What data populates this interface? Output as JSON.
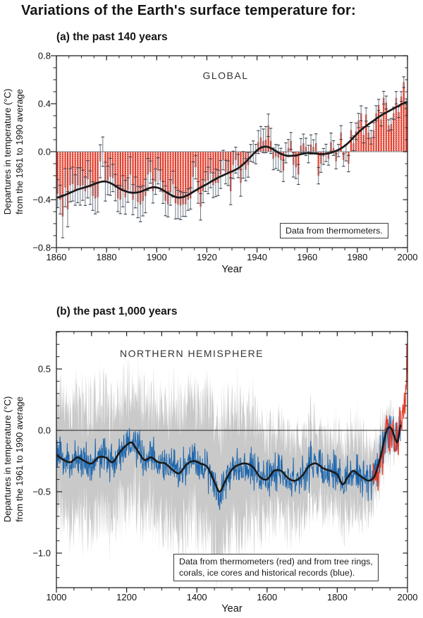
{
  "title": "Variations of the Earth's surface temperature for:",
  "colors": {
    "bar_red": "#e23b2a",
    "bar_dot": "#f6a89b",
    "error_stem": "#6e7b89",
    "error_cap": "#39424c",
    "smooth_black": "#1a1a1a",
    "zero_gray": "#8e99a4",
    "band_gray": "#c9c9c9",
    "proxy_blue": "#1f67ad",
    "instr_red": "#e23b2a",
    "frame": "#222222"
  },
  "chart_data": [
    {
      "type": "bar",
      "panel": "a",
      "title": "(a) the past 140 years",
      "inner_label": "GLOBAL",
      "note": "Data from thermometers.",
      "xlabel": "Year",
      "ylabel_line1": "Departures in temperature (°C)",
      "ylabel_line2": "from the 1961 to 1990 average",
      "xlim": [
        1860,
        2000
      ],
      "ylim": [
        -0.8,
        0.8
      ],
      "x_ticks": [
        "1860",
        "1880",
        "1900",
        "1920",
        "1940",
        "1960",
        "1980",
        "2000"
      ],
      "x_tick_values": [
        1860,
        1880,
        1900,
        1920,
        1940,
        1960,
        1980,
        2000
      ],
      "x_minor_step": 5,
      "y_ticks": [
        "0.8",
        "0.4",
        "0.0",
        "−0.4",
        "−0.8"
      ],
      "y_tick_values": [
        0.8,
        0.4,
        0.0,
        -0.4,
        -0.8
      ],
      "y_minor_step": 0.1,
      "grid": false,
      "legend_position": "inside-bottom-right",
      "start_year": 1860,
      "annual": [
        -0.35,
        -0.4,
        -0.54,
        -0.3,
        -0.48,
        -0.28,
        -0.27,
        -0.32,
        -0.28,
        -0.29,
        -0.28,
        -0.33,
        -0.23,
        -0.3,
        -0.37,
        -0.39,
        -0.38,
        -0.08,
        0.0,
        -0.25,
        -0.24,
        -0.21,
        -0.22,
        -0.3,
        -0.39,
        -0.4,
        -0.33,
        -0.38,
        -0.32,
        -0.19,
        -0.4,
        -0.34,
        -0.42,
        -0.44,
        -0.41,
        -0.37,
        -0.19,
        -0.17,
        -0.33,
        -0.25,
        -0.16,
        -0.24,
        -0.34,
        -0.41,
        -0.44,
        -0.34,
        -0.27,
        -0.43,
        -0.44,
        -0.45,
        -0.44,
        -0.44,
        -0.4,
        -0.39,
        -0.21,
        -0.13,
        -0.34,
        -0.46,
        -0.33,
        -0.25,
        -0.24,
        -0.18,
        -0.28,
        -0.26,
        -0.26,
        -0.19,
        -0.07,
        -0.17,
        -0.18,
        -0.33,
        -0.11,
        -0.07,
        -0.12,
        -0.26,
        -0.11,
        -0.15,
        -0.11,
        -0.01,
        0.0,
        -0.02,
        0.08,
        0.12,
        0.09,
        0.1,
        0.22,
        0.09,
        -0.06,
        -0.04,
        -0.05,
        -0.07,
        -0.16,
        -0.01,
        0.03,
        0.09,
        -0.11,
        -0.13,
        -0.19,
        0.05,
        0.07,
        0.04,
        -0.02,
        0.06,
        0.04,
        0.07,
        -0.2,
        -0.1,
        -0.04,
        -0.01,
        -0.06,
        0.08,
        0.03,
        -0.08,
        0.01,
        0.16,
        -0.07,
        -0.01,
        -0.1,
        0.18,
        0.07,
        0.17,
        0.26,
        0.32,
        0.14,
        0.31,
        0.16,
        0.12,
        0.18,
        0.32,
        0.39,
        0.27,
        0.45,
        0.41,
        0.22,
        0.23,
        0.32,
        0.45,
        0.33,
        0.46,
        0.58,
        0.4
      ],
      "error_ctrl": [
        [
          1860,
          0.145
        ],
        [
          1880,
          0.13
        ],
        [
          1900,
          0.11
        ],
        [
          1920,
          0.1
        ],
        [
          1940,
          0.085
        ],
        [
          1950,
          0.095
        ],
        [
          1960,
          0.065
        ],
        [
          1980,
          0.055
        ],
        [
          1999,
          0.05
        ]
      ]
    },
    {
      "type": "area",
      "panel": "b",
      "title": "(b) the past 1,000 years",
      "inner_label": "NORTHERN HEMISPHERE",
      "note_lines": [
        "Data from thermometers (red) and from tree rings,",
        "corals, ice cores and historical records (blue)."
      ],
      "xlabel": "Year",
      "ylabel_line1": "Departures in temperature (°C)",
      "ylabel_line2": "from the 1961 to 1990 average",
      "xlim": [
        1000,
        2000
      ],
      "ylim": [
        -1.28,
        0.8
      ],
      "x_ticks": [
        "1000",
        "1200",
        "1400",
        "1600",
        "1800",
        "2000"
      ],
      "x_tick_values": [
        1000,
        1200,
        1400,
        1600,
        1800,
        2000
      ],
      "x_minor_step": 50,
      "y_ticks": [
        "0.5",
        "0.0",
        "−0.5",
        "−1.0"
      ],
      "y_tick_values": [
        0.5,
        0.0,
        -0.5,
        -1.0
      ],
      "y_minor_step": 0.1,
      "grid": false,
      "legend_position": "inside-bottom",
      "proxy_end_year": 1980,
      "instr_start_year": 1902,
      "smoothed_ctrl": [
        [
          1000,
          -0.2
        ],
        [
          1020,
          -0.24
        ],
        [
          1040,
          -0.26
        ],
        [
          1060,
          -0.22
        ],
        [
          1080,
          -0.25
        ],
        [
          1100,
          -0.27
        ],
        [
          1120,
          -0.22
        ],
        [
          1140,
          -0.22
        ],
        [
          1160,
          -0.26
        ],
        [
          1180,
          -0.18
        ],
        [
          1200,
          -0.12
        ],
        [
          1215,
          -0.1
        ],
        [
          1230,
          -0.16
        ],
        [
          1250,
          -0.24
        ],
        [
          1270,
          -0.22
        ],
        [
          1290,
          -0.26
        ],
        [
          1310,
          -0.27
        ],
        [
          1330,
          -0.32
        ],
        [
          1350,
          -0.35
        ],
        [
          1370,
          -0.28
        ],
        [
          1390,
          -0.25
        ],
        [
          1410,
          -0.27
        ],
        [
          1430,
          -0.3
        ],
        [
          1450,
          -0.42
        ],
        [
          1465,
          -0.5
        ],
        [
          1480,
          -0.42
        ],
        [
          1500,
          -0.32
        ],
        [
          1520,
          -0.28
        ],
        [
          1540,
          -0.27
        ],
        [
          1560,
          -0.3
        ],
        [
          1580,
          -0.38
        ],
        [
          1600,
          -0.4
        ],
        [
          1620,
          -0.33
        ],
        [
          1640,
          -0.33
        ],
        [
          1660,
          -0.39
        ],
        [
          1680,
          -0.41
        ],
        [
          1700,
          -0.37
        ],
        [
          1720,
          -0.29
        ],
        [
          1740,
          -0.27
        ],
        [
          1760,
          -0.31
        ],
        [
          1780,
          -0.33
        ],
        [
          1800,
          -0.36
        ],
        [
          1815,
          -0.44
        ],
        [
          1830,
          -0.38
        ],
        [
          1845,
          -0.33
        ],
        [
          1860,
          -0.36
        ],
        [
          1875,
          -0.39
        ],
        [
          1890,
          -0.41
        ],
        [
          1905,
          -0.38
        ],
        [
          1915,
          -0.3
        ],
        [
          1925,
          -0.2
        ],
        [
          1935,
          -0.06
        ],
        [
          1945,
          0.02
        ],
        [
          1955,
          0.01
        ],
        [
          1965,
          -0.07
        ],
        [
          1972,
          -0.09
        ],
        [
          1980,
          0.04
        ]
      ],
      "band_halfwidth_ctrl": [
        [
          1000,
          0.5
        ],
        [
          1100,
          0.52
        ],
        [
          1200,
          0.5
        ],
        [
          1300,
          0.52
        ],
        [
          1400,
          0.55
        ],
        [
          1470,
          0.58
        ],
        [
          1550,
          0.5
        ],
        [
          1600,
          0.36
        ],
        [
          1650,
          0.38
        ],
        [
          1700,
          0.35
        ],
        [
          1750,
          0.32
        ],
        [
          1800,
          0.32
        ],
        [
          1850,
          0.36
        ],
        [
          1880,
          0.32
        ],
        [
          1900,
          0.25
        ],
        [
          1930,
          0.18
        ],
        [
          1960,
          0.12
        ],
        [
          1980,
          0.1
        ]
      ],
      "annual_noise_amp": 0.155,
      "instrumental_ctrl": [
        [
          1902,
          -0.32
        ],
        [
          1904,
          -0.4
        ],
        [
          1907,
          -0.38
        ],
        [
          1910,
          -0.35
        ],
        [
          1913,
          -0.32
        ],
        [
          1917,
          -0.45
        ],
        [
          1920,
          -0.25
        ],
        [
          1923,
          -0.28
        ],
        [
          1926,
          -0.15
        ],
        [
          1929,
          -0.3
        ],
        [
          1931,
          -0.12
        ],
        [
          1934,
          -0.1
        ],
        [
          1937,
          -0.02
        ],
        [
          1940,
          0.05
        ],
        [
          1942,
          0.05
        ],
        [
          1944,
          0.15
        ],
        [
          1946,
          -0.05
        ],
        [
          1950,
          -0.18
        ],
        [
          1953,
          0.05
        ],
        [
          1956,
          -0.15
        ],
        [
          1958,
          0.05
        ],
        [
          1961,
          0.05
        ],
        [
          1964,
          -0.2
        ],
        [
          1968,
          -0.08
        ],
        [
          1970,
          0.0
        ],
        [
          1972,
          -0.05
        ],
        [
          1974,
          -0.12
        ],
        [
          1977,
          0.1
        ],
        [
          1980,
          0.15
        ],
        [
          1982,
          0.05
        ],
        [
          1984,
          0.05
        ],
        [
          1987,
          0.2
        ],
        [
          1989,
          0.15
        ],
        [
          1991,
          0.3
        ],
        [
          1993,
          0.15
        ],
        [
          1995,
          0.35
        ],
        [
          1997,
          0.4
        ],
        [
          1998,
          0.7
        ],
        [
          1999,
          0.55
        ],
        [
          2000,
          0.5
        ]
      ]
    }
  ]
}
